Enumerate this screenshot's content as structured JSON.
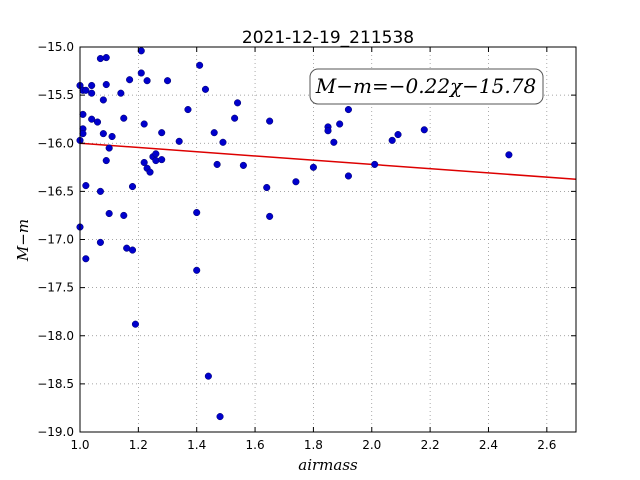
{
  "chart_data": {
    "type": "scatter",
    "title": "2021-12-19_211538",
    "xlabel": "airmass",
    "ylabel": "M−m",
    "xlim": [
      1.0,
      2.7
    ],
    "ylim": [
      -15.0,
      -19.0
    ],
    "y_inverted": true,
    "grid": true,
    "x_ticks": [
      "1.0",
      "1.2",
      "1.4",
      "1.6",
      "1.8",
      "2.0",
      "2.2",
      "2.4",
      "2.6"
    ],
    "y_ticks": [
      "−15.0",
      "−15.5",
      "−16.0",
      "−16.5",
      "−17.0",
      "−17.5",
      "−18.0",
      "−18.5",
      "−19.0"
    ],
    "annotation": "M−m=−0.22χ−15.78",
    "point_color": "#0000cc",
    "fit_color": "#dd0000",
    "fit": {
      "slope": -0.22,
      "intercept": -15.78
    },
    "points": [
      [
        1.0,
        -15.4
      ],
      [
        1.0,
        -15.97
      ],
      [
        1.0,
        -16.87
      ],
      [
        1.01,
        -15.85
      ],
      [
        1.01,
        -15.9
      ],
      [
        1.01,
        -15.7
      ],
      [
        1.01,
        -15.45
      ],
      [
        1.02,
        -15.45
      ],
      [
        1.02,
        -16.44
      ],
      [
        1.02,
        -17.2
      ],
      [
        1.04,
        -15.4
      ],
      [
        1.04,
        -15.48
      ],
      [
        1.04,
        -15.75
      ],
      [
        1.06,
        -15.78
      ],
      [
        1.07,
        -15.12
      ],
      [
        1.07,
        -16.5
      ],
      [
        1.07,
        -17.03
      ],
      [
        1.08,
        -15.55
      ],
      [
        1.08,
        -15.9
      ],
      [
        1.09,
        -15.11
      ],
      [
        1.09,
        -15.39
      ],
      [
        1.09,
        -16.18
      ],
      [
        1.1,
        -16.05
      ],
      [
        1.1,
        -16.73
      ],
      [
        1.11,
        -15.93
      ],
      [
        1.14,
        -15.48
      ],
      [
        1.15,
        -15.74
      ],
      [
        1.15,
        -16.75
      ],
      [
        1.16,
        -17.09
      ],
      [
        1.17,
        -15.34
      ],
      [
        1.18,
        -16.45
      ],
      [
        1.18,
        -17.11
      ],
      [
        1.19,
        -17.88
      ],
      [
        1.21,
        -15.04
      ],
      [
        1.21,
        -15.27
      ],
      [
        1.22,
        -16.2
      ],
      [
        1.22,
        -15.8
      ],
      [
        1.23,
        -15.35
      ],
      [
        1.23,
        -16.26
      ],
      [
        1.24,
        -16.3
      ],
      [
        1.25,
        -16.14
      ],
      [
        1.26,
        -16.11
      ],
      [
        1.26,
        -16.18
      ],
      [
        1.28,
        -15.89
      ],
      [
        1.28,
        -16.17
      ],
      [
        1.3,
        -15.35
      ],
      [
        1.34,
        -15.98
      ],
      [
        1.37,
        -15.65
      ],
      [
        1.4,
        -17.32
      ],
      [
        1.4,
        -16.72
      ],
      [
        1.41,
        -15.19
      ],
      [
        1.43,
        -15.44
      ],
      [
        1.44,
        -18.42
      ],
      [
        1.46,
        -15.89
      ],
      [
        1.47,
        -16.22
      ],
      [
        1.48,
        -18.84
      ],
      [
        1.49,
        -15.99
      ],
      [
        1.53,
        -15.74
      ],
      [
        1.54,
        -15.58
      ],
      [
        1.56,
        -16.23
      ],
      [
        1.64,
        -16.46
      ],
      [
        1.65,
        -16.76
      ],
      [
        1.65,
        -15.77
      ],
      [
        1.74,
        -16.4
      ],
      [
        1.8,
        -16.25
      ],
      [
        1.85,
        -15.83
      ],
      [
        1.85,
        -15.87
      ],
      [
        1.87,
        -15.99
      ],
      [
        1.89,
        -15.8
      ],
      [
        1.92,
        -15.65
      ],
      [
        1.92,
        -16.34
      ],
      [
        2.01,
        -16.22
      ],
      [
        2.07,
        -15.97
      ],
      [
        2.09,
        -15.91
      ],
      [
        2.18,
        -15.86
      ],
      [
        2.47,
        -16.12
      ]
    ]
  }
}
